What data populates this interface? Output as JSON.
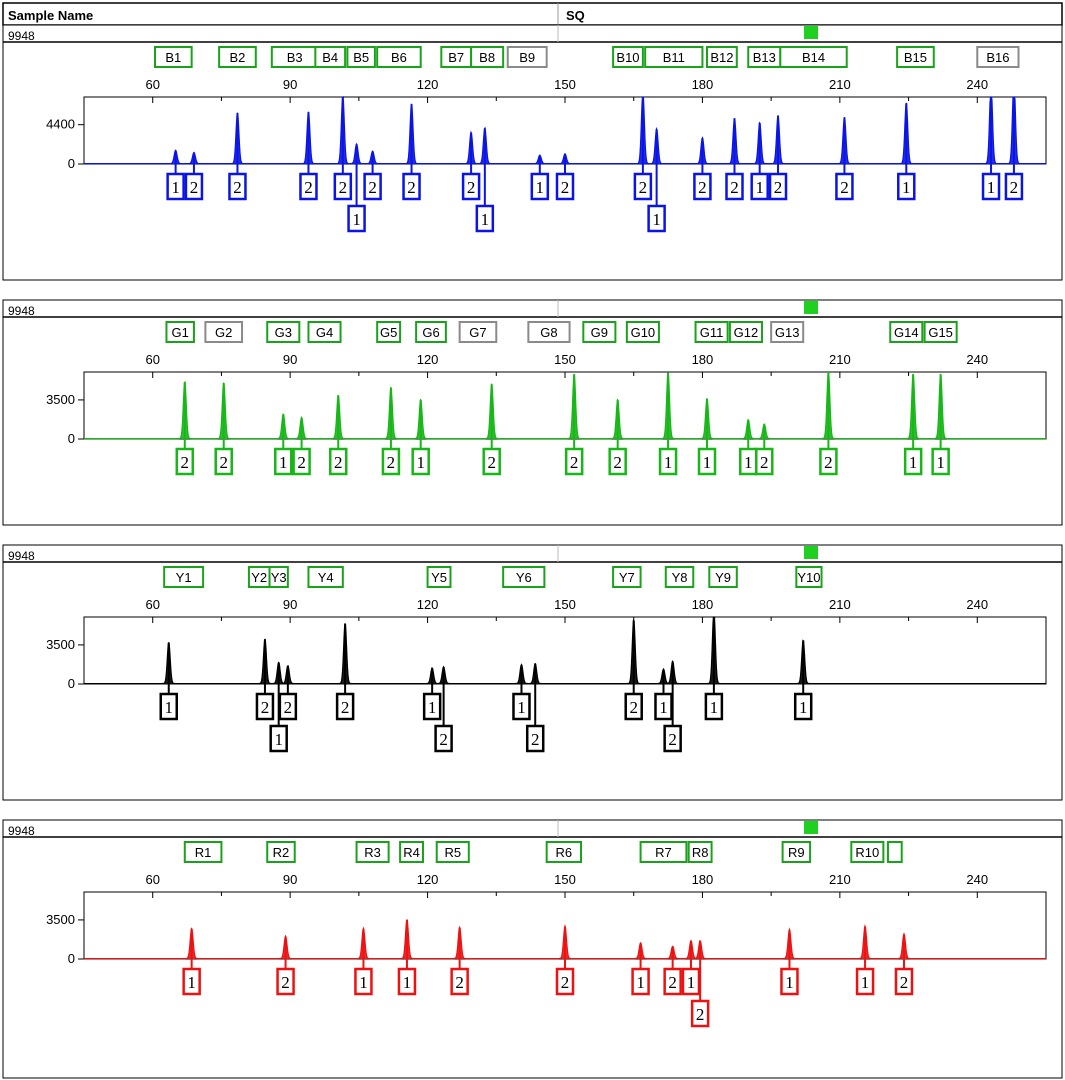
{
  "header": {
    "sample_name_label": "Sample Name",
    "sq_label": "SQ"
  },
  "chart_data": [
    {
      "type": "line",
      "sample": "9948",
      "dye": "blue",
      "color": "#0a14e6",
      "xlim": [
        45,
        255
      ],
      "x_ticks": [
        60,
        90,
        120,
        150,
        180,
        210,
        240
      ],
      "x_minor_ticks": [
        75,
        105,
        135,
        165,
        195,
        225
      ],
      "ylim": [
        0,
        7500
      ],
      "y_ticks": [
        0,
        4400
      ],
      "markers": [
        {
          "label": "B1",
          "x": 60.5,
          "w": 8,
          "color": "green"
        },
        {
          "label": "B2",
          "x": 74.5,
          "w": 8,
          "color": "green"
        },
        {
          "label": "B3",
          "x": 86,
          "w": 10,
          "color": "green"
        },
        {
          "label": "B4",
          "x": 95.5,
          "w": 6.5,
          "color": "green"
        },
        {
          "label": "B5",
          "x": 102.5,
          "w": 6,
          "color": "green"
        },
        {
          "label": "B6",
          "x": 109,
          "w": 9.5,
          "color": "green"
        },
        {
          "label": "B7",
          "x": 123,
          "w": 6.5,
          "color": "green"
        },
        {
          "label": "B8",
          "x": 129.5,
          "w": 7,
          "color": "green"
        },
        {
          "label": "B9",
          "x": 137.5,
          "w": 8.5,
          "color": "gray"
        },
        {
          "label": "B10",
          "x": 160.5,
          "w": 6.5,
          "color": "green"
        },
        {
          "label": "B11",
          "x": 167.5,
          "w": 12.5,
          "color": "green"
        },
        {
          "label": "B12",
          "x": 181,
          "w": 6.5,
          "color": "green"
        },
        {
          "label": "B13",
          "x": 190,
          "w": 7,
          "color": "green"
        },
        {
          "label": "B14",
          "x": 197,
          "w": 14.5,
          "color": "green"
        },
        {
          "label": "B15",
          "x": 222.5,
          "w": 8,
          "color": "green"
        },
        {
          "label": "B16",
          "x": 240,
          "w": 9,
          "color": "gray"
        }
      ],
      "peaks": [
        {
          "x": 65,
          "h": 1500
        },
        {
          "x": 69,
          "h": 1250
        },
        {
          "x": 78.5,
          "h": 5700
        },
        {
          "x": 94,
          "h": 5800
        },
        {
          "x": 101.5,
          "h": 7600
        },
        {
          "x": 104.5,
          "h": 2200
        },
        {
          "x": 108,
          "h": 1400
        },
        {
          "x": 116.5,
          "h": 6700
        },
        {
          "x": 129.5,
          "h": 3500
        },
        {
          "x": 132.5,
          "h": 4000
        },
        {
          "x": 144.5,
          "h": 950
        },
        {
          "x": 150,
          "h": 1100
        },
        {
          "x": 167,
          "h": 8000
        },
        {
          "x": 170,
          "h": 3900
        },
        {
          "x": 180,
          "h": 2900
        },
        {
          "x": 187,
          "h": 5100
        },
        {
          "x": 192.5,
          "h": 4600
        },
        {
          "x": 196.5,
          "h": 5400
        },
        {
          "x": 211,
          "h": 5200
        },
        {
          "x": 224.5,
          "h": 6800
        },
        {
          "x": 243,
          "h": 8800
        },
        {
          "x": 248,
          "h": 9400
        }
      ],
      "labels": [
        {
          "text": "1",
          "x": 65,
          "row": 0
        },
        {
          "text": "2",
          "x": 69,
          "row": 0
        },
        {
          "text": "2",
          "x": 78.5,
          "row": 0
        },
        {
          "text": "2",
          "x": 94,
          "row": 0
        },
        {
          "text": "2",
          "x": 101.5,
          "row": 0
        },
        {
          "text": "1",
          "x": 104.5,
          "row": 1
        },
        {
          "text": "2",
          "x": 108,
          "row": 0
        },
        {
          "text": "2",
          "x": 116.5,
          "row": 0
        },
        {
          "text": "2",
          "x": 129.5,
          "row": 0
        },
        {
          "text": "1",
          "x": 132.5,
          "row": 1
        },
        {
          "text": "1",
          "x": 144.5,
          "row": 0
        },
        {
          "text": "2",
          "x": 150,
          "row": 0
        },
        {
          "text": "2",
          "x": 167,
          "row": 0
        },
        {
          "text": "1",
          "x": 170,
          "row": 1
        },
        {
          "text": "2",
          "x": 180,
          "row": 0
        },
        {
          "text": "2",
          "x": 187,
          "row": 0
        },
        {
          "text": "1",
          "x": 192.5,
          "row": 0
        },
        {
          "text": "2",
          "x": 196.5,
          "row": 0
        },
        {
          "text": "2",
          "x": 211,
          "row": 0
        },
        {
          "text": "1",
          "x": 224.5,
          "row": 0
        },
        {
          "text": "1",
          "x": 243,
          "row": 0
        },
        {
          "text": "2",
          "x": 248,
          "row": 0
        }
      ]
    },
    {
      "type": "line",
      "sample": "9948",
      "dye": "green",
      "color": "#16b716",
      "xlim": [
        45,
        255
      ],
      "x_ticks": [
        60,
        90,
        120,
        150,
        180,
        210,
        240
      ],
      "x_minor_ticks": [
        75,
        105,
        135,
        165,
        195,
        225
      ],
      "ylim": [
        0,
        6000
      ],
      "y_ticks": [
        0,
        3500
      ],
      "markers": [
        {
          "label": "G1",
          "x": 63,
          "w": 6,
          "color": "green"
        },
        {
          "label": "G2",
          "x": 71.5,
          "w": 8,
          "color": "gray"
        },
        {
          "label": "G3",
          "x": 85,
          "w": 7,
          "color": "green"
        },
        {
          "label": "G4",
          "x": 94,
          "w": 7,
          "color": "green"
        },
        {
          "label": "G5",
          "x": 109,
          "w": 5,
          "color": "green"
        },
        {
          "label": "G6",
          "x": 117.5,
          "w": 6.5,
          "color": "green"
        },
        {
          "label": "G7",
          "x": 127,
          "w": 8,
          "color": "gray"
        },
        {
          "label": "G8",
          "x": 142,
          "w": 9,
          "color": "gray"
        },
        {
          "label": "G9",
          "x": 154,
          "w": 7,
          "color": "green"
        },
        {
          "label": "G10",
          "x": 163.5,
          "w": 7,
          "color": "green"
        },
        {
          "label": "G11",
          "x": 178.5,
          "w": 7,
          "color": "green"
        },
        {
          "label": "G12",
          "x": 186,
          "w": 7,
          "color": "green"
        },
        {
          "label": "G13",
          "x": 195,
          "w": 7,
          "color": "gray"
        },
        {
          "label": "G14",
          "x": 221,
          "w": 7,
          "color": "green"
        },
        {
          "label": "G15",
          "x": 228.5,
          "w": 7,
          "color": "green"
        }
      ],
      "peaks": [
        {
          "x": 67,
          "h": 5100
        },
        {
          "x": 75.5,
          "h": 5000
        },
        {
          "x": 88.5,
          "h": 2200
        },
        {
          "x": 92.5,
          "h": 1900
        },
        {
          "x": 100.5,
          "h": 3900
        },
        {
          "x": 112,
          "h": 4600
        },
        {
          "x": 118.5,
          "h": 3500
        },
        {
          "x": 134,
          "h": 4900
        },
        {
          "x": 152,
          "h": 5800
        },
        {
          "x": 161.5,
          "h": 3500
        },
        {
          "x": 172.5,
          "h": 5900
        },
        {
          "x": 181,
          "h": 3600
        },
        {
          "x": 190,
          "h": 1700
        },
        {
          "x": 193.5,
          "h": 1300
        },
        {
          "x": 207.5,
          "h": 6000
        },
        {
          "x": 226,
          "h": 5800
        },
        {
          "x": 232,
          "h": 5800
        }
      ],
      "labels": [
        {
          "text": "2",
          "x": 67,
          "row": 0
        },
        {
          "text": "2",
          "x": 75.5,
          "row": 0
        },
        {
          "text": "1",
          "x": 88.5,
          "row": 0
        },
        {
          "text": "2",
          "x": 92.5,
          "row": 0
        },
        {
          "text": "2",
          "x": 100.5,
          "row": 0
        },
        {
          "text": "2",
          "x": 112,
          "row": 0
        },
        {
          "text": "1",
          "x": 118.5,
          "row": 0
        },
        {
          "text": "2",
          "x": 134,
          "row": 0
        },
        {
          "text": "2",
          "x": 152,
          "row": 0
        },
        {
          "text": "2",
          "x": 161.5,
          "row": 0
        },
        {
          "text": "1",
          "x": 172.5,
          "row": 0
        },
        {
          "text": "1",
          "x": 181,
          "row": 0
        },
        {
          "text": "1",
          "x": 190,
          "row": 0
        },
        {
          "text": "2",
          "x": 193.5,
          "row": 0
        },
        {
          "text": "2",
          "x": 207.5,
          "row": 0
        },
        {
          "text": "1",
          "x": 226,
          "row": 0
        },
        {
          "text": "1",
          "x": 232,
          "row": 0
        }
      ]
    },
    {
      "type": "line",
      "sample": "9948",
      "dye": "yellow",
      "color": "#000000",
      "xlim": [
        45,
        255
      ],
      "x_ticks": [
        60,
        90,
        120,
        150,
        180,
        210,
        240
      ],
      "x_minor_ticks": [
        75,
        105,
        135,
        165,
        195,
        225
      ],
      "ylim": [
        0,
        6000
      ],
      "y_ticks": [
        0,
        3500
      ],
      "markers": [
        {
          "label": "Y1",
          "x": 62.5,
          "w": 8.5,
          "color": "green"
        },
        {
          "label": "Y2",
          "x": 81,
          "w": 4.5,
          "color": "green"
        },
        {
          "label": "Y3",
          "x": 85.5,
          "w": 4,
          "color": "green"
        },
        {
          "label": "Y4",
          "x": 94,
          "w": 7.5,
          "color": "green"
        },
        {
          "label": "Y5",
          "x": 120,
          "w": 5,
          "color": "green"
        },
        {
          "label": "Y6",
          "x": 136.5,
          "w": 9,
          "color": "green"
        },
        {
          "label": "Y7",
          "x": 160.5,
          "w": 6,
          "color": "green"
        },
        {
          "label": "Y8",
          "x": 172,
          "w": 6,
          "color": "green"
        },
        {
          "label": "Y9",
          "x": 181.5,
          "w": 6,
          "color": "green"
        },
        {
          "label": "Y10",
          "x": 200.5,
          "w": 5.5,
          "color": "green"
        }
      ],
      "peaks": [
        {
          "x": 63.5,
          "h": 3700
        },
        {
          "x": 84.5,
          "h": 4000
        },
        {
          "x": 87.5,
          "h": 1900
        },
        {
          "x": 89.5,
          "h": 1600
        },
        {
          "x": 102,
          "h": 5400
        },
        {
          "x": 121,
          "h": 1400
        },
        {
          "x": 123.5,
          "h": 1500
        },
        {
          "x": 140.5,
          "h": 1700
        },
        {
          "x": 143.5,
          "h": 1800
        },
        {
          "x": 165,
          "h": 5700
        },
        {
          "x": 171.5,
          "h": 1300
        },
        {
          "x": 173.5,
          "h": 2000
        },
        {
          "x": 182.5,
          "h": 6500
        },
        {
          "x": 202,
          "h": 3900
        }
      ],
      "labels": [
        {
          "text": "1",
          "x": 63.5,
          "row": 0
        },
        {
          "text": "2",
          "x": 84.5,
          "row": 0
        },
        {
          "text": "1",
          "x": 87.5,
          "row": 1
        },
        {
          "text": "2",
          "x": 89.5,
          "row": 0
        },
        {
          "text": "2",
          "x": 102,
          "row": 0
        },
        {
          "text": "1",
          "x": 121,
          "row": 0
        },
        {
          "text": "2",
          "x": 123.5,
          "row": 1
        },
        {
          "text": "1",
          "x": 140.5,
          "row": 0
        },
        {
          "text": "2",
          "x": 143.5,
          "row": 1
        },
        {
          "text": "2",
          "x": 165,
          "row": 0
        },
        {
          "text": "1",
          "x": 171.5,
          "row": 0
        },
        {
          "text": "2",
          "x": 173.5,
          "row": 1
        },
        {
          "text": "1",
          "x": 182.5,
          "row": 0
        },
        {
          "text": "1",
          "x": 202,
          "row": 0
        }
      ]
    },
    {
      "type": "line",
      "sample": "9948",
      "dye": "red",
      "color": "#ee1111",
      "xlim": [
        45,
        255
      ],
      "x_ticks": [
        60,
        90,
        120,
        150,
        180,
        210,
        240
      ],
      "x_minor_ticks": [
        75,
        105,
        135,
        165,
        195,
        225
      ],
      "ylim": [
        0,
        6000
      ],
      "y_ticks": [
        0,
        3500
      ],
      "markers": [
        {
          "label": "R1",
          "x": 67,
          "w": 8,
          "color": "green"
        },
        {
          "label": "R2",
          "x": 85,
          "w": 6,
          "color": "green"
        },
        {
          "label": "R3",
          "x": 104.5,
          "w": 7,
          "color": "green"
        },
        {
          "label": "R4",
          "x": 114,
          "w": 5,
          "color": "green"
        },
        {
          "label": "R5",
          "x": 122,
          "w": 7,
          "color": "green"
        },
        {
          "label": "R6",
          "x": 146,
          "w": 7.5,
          "color": "green"
        },
        {
          "label": "R7",
          "x": 166.5,
          "w": 10,
          "color": "green"
        },
        {
          "label": "R8",
          "x": 177,
          "w": 5,
          "color": "green"
        },
        {
          "label": "R9",
          "x": 197.5,
          "w": 6,
          "color": "green"
        },
        {
          "label": "R10",
          "x": 212.5,
          "w": 7,
          "color": "green"
        },
        {
          "label": "",
          "x": 220.5,
          "w": 3,
          "color": "green"
        }
      ],
      "peaks": [
        {
          "x": 68.5,
          "h": 2700
        },
        {
          "x": 89,
          "h": 2000
        },
        {
          "x": 106,
          "h": 2700
        },
        {
          "x": 115.5,
          "h": 3500
        },
        {
          "x": 127,
          "h": 2800
        },
        {
          "x": 150,
          "h": 2900
        },
        {
          "x": 166.5,
          "h": 1400
        },
        {
          "x": 173.5,
          "h": 1100
        },
        {
          "x": 177.5,
          "h": 1600
        },
        {
          "x": 179.5,
          "h": 1600
        },
        {
          "x": 199,
          "h": 2600
        },
        {
          "x": 215.5,
          "h": 2900
        },
        {
          "x": 224,
          "h": 2200
        }
      ],
      "labels": [
        {
          "text": "1",
          "x": 68.5,
          "row": 0
        },
        {
          "text": "2",
          "x": 89,
          "row": 0
        },
        {
          "text": "1",
          "x": 106,
          "row": 0
        },
        {
          "text": "1",
          "x": 115.5,
          "row": 0
        },
        {
          "text": "2",
          "x": 127,
          "row": 0
        },
        {
          "text": "2",
          "x": 150,
          "row": 0
        },
        {
          "text": "1",
          "x": 166.5,
          "row": 0
        },
        {
          "text": "2",
          "x": 173.5,
          "row": 0
        },
        {
          "text": "1",
          "x": 177.5,
          "row": 0
        },
        {
          "text": "2",
          "x": 179.5,
          "row": 1
        },
        {
          "text": "1",
          "x": 199,
          "row": 0
        },
        {
          "text": "1",
          "x": 215.5,
          "row": 0
        },
        {
          "text": "2",
          "x": 224,
          "row": 0
        }
      ]
    }
  ]
}
